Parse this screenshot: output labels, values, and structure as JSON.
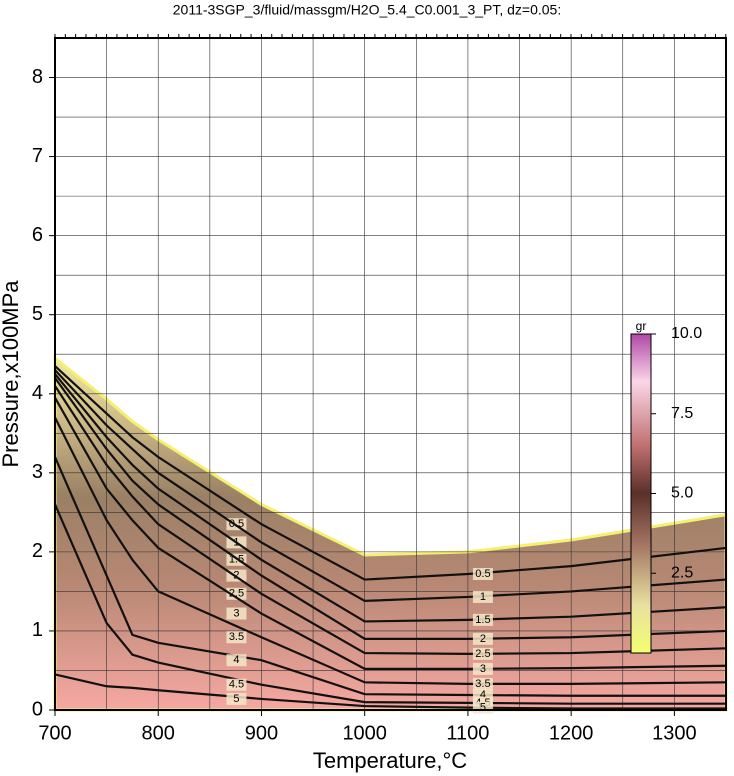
{
  "chart_data": {
    "type": "contour",
    "title": "2011-3SGP_3/fluid/massgm/H2O_5.4_C0.001_3_PT, dz=0.05:",
    "x_label": "Temperature,°C",
    "y_label": "Pressure,x100MPa",
    "xlim": [
      700,
      1350
    ],
    "ylim": [
      0,
      8.5
    ],
    "xticks": [
      700,
      800,
      900,
      1000,
      1100,
      1200,
      1300
    ],
    "yticks": [
      0,
      1,
      2,
      3,
      4,
      5,
      6,
      7,
      8
    ],
    "xminor": [
      750,
      850,
      950,
      1050,
      1150,
      1250
    ],
    "yminor": [
      0.5,
      1.5,
      2.5,
      3.5,
      4.5,
      5.5,
      6.5,
      7.5
    ],
    "grid": true,
    "x": [
      700,
      750,
      775,
      800,
      900,
      1000,
      1100,
      1200,
      1350
    ],
    "region_top": [
      4.45,
      3.93,
      3.65,
      3.42,
      2.6,
      1.96,
      2.0,
      2.15,
      2.47
    ],
    "series": [
      {
        "name": "0.5",
        "color": "#111111",
        "values": [
          4.35,
          3.75,
          3.45,
          3.2,
          2.35,
          1.65,
          1.72,
          1.82,
          2.05
        ]
      },
      {
        "name": "1",
        "color": "#111111",
        "values": [
          4.3,
          3.6,
          3.3,
          3.0,
          2.12,
          1.38,
          1.43,
          1.5,
          1.65
        ]
      },
      {
        "name": "1.5",
        "color": "#111111",
        "values": [
          4.25,
          3.45,
          3.1,
          2.8,
          1.9,
          1.12,
          1.14,
          1.18,
          1.3
        ]
      },
      {
        "name": "2",
        "color": "#111111",
        "values": [
          4.2,
          3.3,
          2.9,
          2.6,
          1.7,
          0.9,
          0.9,
          0.92,
          1.0
        ]
      },
      {
        "name": "2.5",
        "color": "#111111",
        "values": [
          4.1,
          3.1,
          2.7,
          2.35,
          1.47,
          0.72,
          0.71,
          0.72,
          0.78
        ]
      },
      {
        "name": "3",
        "color": "#111111",
        "values": [
          3.95,
          2.8,
          2.4,
          2.05,
          1.22,
          0.52,
          0.52,
          0.53,
          0.56
        ]
      },
      {
        "name": "3.5",
        "color": "#111111",
        "values": [
          3.7,
          2.4,
          1.9,
          1.5,
          0.92,
          0.35,
          0.33,
          0.33,
          0.35
        ]
      },
      {
        "name": "4",
        "color": "#111111",
        "values": [
          3.2,
          1.7,
          0.95,
          0.85,
          0.63,
          0.2,
          0.19,
          0.18,
          0.18
        ]
      },
      {
        "name": "4.5",
        "color": "#111111",
        "values": [
          2.6,
          1.1,
          0.7,
          0.6,
          0.32,
          0.1,
          0.09,
          0.08,
          0.08
        ]
      },
      {
        "name": "5",
        "color": "#111111",
        "values": [
          0.45,
          0.3,
          0.28,
          0.25,
          0.14,
          0.05,
          0.03,
          0.02,
          0.02
        ]
      }
    ],
    "colorbar": {
      "label": "gr",
      "lim": [
        0,
        10
      ],
      "ticks": [
        {
          "value": 10,
          "label": "10.0"
        },
        7.5,
        {
          "value": 5,
          "label": "5.0"
        },
        2.5
      ]
    }
  }
}
